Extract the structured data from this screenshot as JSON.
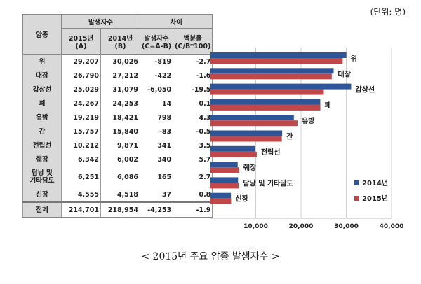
{
  "unit_label": "(단위: 명)",
  "caption": "< 2015년 주요 암종 발생자수 >",
  "table": {
    "headers": {
      "cancer": "암종",
      "incidence": "발생자수",
      "diff": "차이",
      "y2015": "2015년\n(A)",
      "y2014": "2014년\n(B)",
      "diff_count": "발생자수\n(C=A-B)",
      "diff_pct": "백분율\n(C/B*100)"
    },
    "rows": [
      [
        "위",
        "29,207",
        "30,026",
        "-819",
        "-2.7"
      ],
      [
        "대장",
        "26,790",
        "27,212",
        "-422",
        "-1.6"
      ],
      [
        "갑상선",
        "25,029",
        "31,079",
        "-6,050",
        "-19.5"
      ],
      [
        "폐",
        "24,267",
        "24,253",
        "14",
        "0.1"
      ],
      [
        "유방",
        "19,219",
        "18,421",
        "798",
        "4.3"
      ],
      [
        "간",
        "15,757",
        "15,840",
        "-83",
        "-0.5"
      ],
      [
        "전립선",
        "10,212",
        "9,871",
        "341",
        "3.5"
      ],
      [
        "췌장",
        "6,342",
        "6,002",
        "340",
        "5.7"
      ],
      [
        "담낭 및\n기타담도",
        "6,251",
        "6,086",
        "165",
        "2.7"
      ],
      [
        "신장",
        "4,555",
        "4,518",
        "37",
        "0.8"
      ]
    ],
    "total": [
      "전체",
      "214,701",
      "218,954",
      "-4,253",
      "-1.9"
    ]
  },
  "chart_data": {
    "type": "bar",
    "orientation": "horizontal",
    "categories": [
      "위",
      "대장",
      "갑상선",
      "폐",
      "유방",
      "간",
      "전립선",
      "췌장",
      "담낭 및 기타담도",
      "신장"
    ],
    "series": [
      {
        "name": "2014년",
        "color": "#2e5597",
        "values": [
          30026,
          27212,
          31079,
          24253,
          18421,
          15840,
          9871,
          6002,
          6086,
          4518
        ]
      },
      {
        "name": "2015년",
        "color": "#c0484a",
        "values": [
          29207,
          26790,
          25029,
          24267,
          19219,
          15757,
          10212,
          6342,
          6251,
          4555
        ]
      }
    ],
    "xlim": [
      0,
      40000
    ],
    "xticks": [
      "10,000",
      "20,000",
      "30,000",
      "40,000"
    ],
    "grid": true,
    "legend": "bottom-right"
  }
}
